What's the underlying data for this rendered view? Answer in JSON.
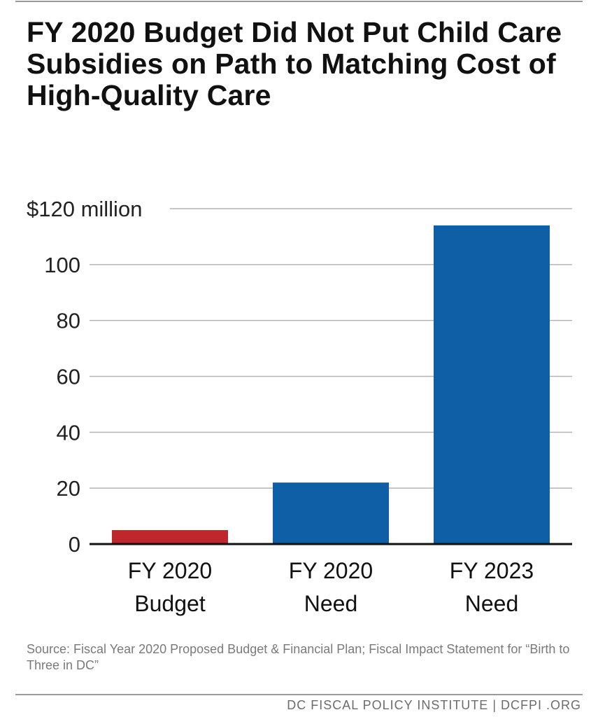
{
  "chart_data": {
    "type": "bar",
    "title": "FY 2020 Budget Did Not Put Child Care Subsidies on Path to Matching Cost of High-Quality Care",
    "categories": [
      [
        "FY 2020",
        "Budget"
      ],
      [
        "FY 2020",
        "Need"
      ],
      [
        "FY 2023",
        "Need"
      ]
    ],
    "values": [
      5,
      22,
      114
    ],
    "bar_colors": [
      "#c0272d",
      "#0f5fa6",
      "#0f5fa6"
    ],
    "ylim": [
      0,
      120
    ],
    "yticks": [
      0,
      20,
      40,
      60,
      80,
      100,
      120
    ],
    "ytick_labels": [
      "0",
      "20",
      "40",
      "60",
      "80",
      "100",
      "$120 million"
    ],
    "grid": true,
    "legend": "none"
  },
  "source": "Source: Fiscal Year 2020 Proposed Budget & Financial Plan; Fiscal Impact Statement for “Birth to Three in DC”",
  "footer": "DC FISCAL POLICY INSTITUTE  |  DCFPI .ORG"
}
